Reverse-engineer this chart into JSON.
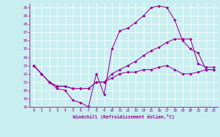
{
  "xlabel": "Windchill (Refroidissement éolien,°C)",
  "bg_color": "#c8eef0",
  "line_color": "#990099",
  "grid_color": "#ffffff",
  "xlim": [
    -0.5,
    23.5
  ],
  "ylim": [
    18,
    30.5
  ],
  "yticks": [
    18,
    19,
    20,
    21,
    22,
    23,
    24,
    25,
    26,
    27,
    28,
    29,
    30
  ],
  "xticks": [
    0,
    1,
    2,
    3,
    4,
    5,
    6,
    7,
    8,
    9,
    10,
    11,
    12,
    13,
    14,
    15,
    16,
    17,
    18,
    19,
    20,
    21,
    22,
    23
  ],
  "series": [
    {
      "x": [
        0,
        1,
        2,
        3,
        4,
        5,
        6,
        7,
        8,
        9,
        10,
        11,
        12,
        13,
        14,
        15,
        16,
        17,
        18,
        19,
        20,
        21,
        22,
        23
      ],
      "y": [
        23,
        22,
        21,
        20.2,
        20,
        18.8,
        18.5,
        18,
        22,
        19.5,
        25,
        27.2,
        27.5,
        28.2,
        29,
        30,
        30.2,
        30,
        28.5,
        26,
        25,
        24.5,
        22.5,
        22.5
      ]
    },
    {
      "x": [
        0,
        1,
        2,
        3,
        4,
        5,
        6,
        7,
        8,
        9,
        10,
        11,
        12,
        13,
        14,
        15,
        16,
        17,
        18,
        19,
        20,
        21,
        22,
        23
      ],
      "y": [
        23,
        22,
        21,
        20.5,
        20.5,
        20.2,
        20.2,
        20.2,
        21,
        21,
        22,
        22.5,
        23,
        23.5,
        24.2,
        24.8,
        25.2,
        25.8,
        26.2,
        26.2,
        26.2,
        23.2,
        22.8,
        22.8
      ]
    },
    {
      "x": [
        0,
        1,
        2,
        3,
        4,
        5,
        6,
        7,
        8,
        9,
        10,
        11,
        12,
        13,
        14,
        15,
        16,
        17,
        18,
        19,
        20,
        21,
        22,
        23
      ],
      "y": [
        23,
        22,
        21,
        20.5,
        20.5,
        20.2,
        20.2,
        20.2,
        21,
        21,
        21.5,
        22,
        22.2,
        22.2,
        22.5,
        22.5,
        22.8,
        23,
        22.5,
        22,
        22,
        22.2,
        22.5,
        22.5
      ]
    }
  ]
}
